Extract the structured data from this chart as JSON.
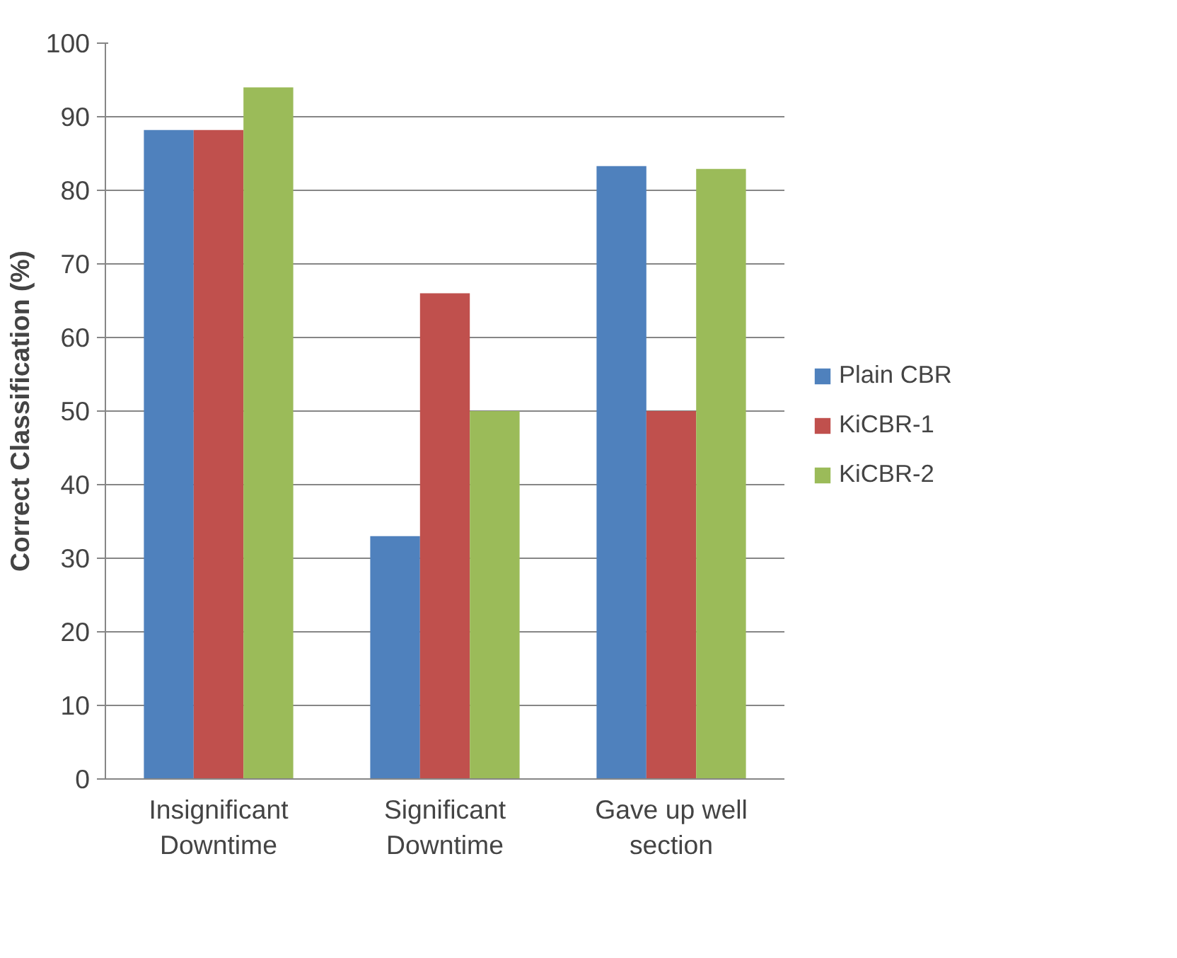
{
  "chart_data": {
    "type": "bar",
    "ylabel": "Correct Classification (%)",
    "categories": [
      "Insignificant Downtime",
      "Significant Downtime",
      "Gave up well section"
    ],
    "series": [
      {
        "name": "Plain CBR",
        "color": "#4f81bd",
        "values": [
          88.2,
          33,
          83.3
        ]
      },
      {
        "name": "KiCBR-1",
        "color": "#c0504d",
        "values": [
          88.2,
          66,
          50
        ]
      },
      {
        "name": "KiCBR-2",
        "color": "#9bbb59",
        "values": [
          94,
          50,
          82.9
        ]
      }
    ],
    "ylim": [
      0,
      100
    ],
    "yticks": [
      0,
      10,
      20,
      30,
      40,
      50,
      60,
      70,
      80,
      90,
      100
    ],
    "grid": "y",
    "legend": "right"
  }
}
